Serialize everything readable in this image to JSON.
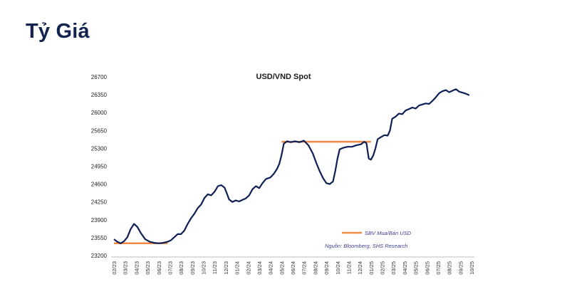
{
  "page": {
    "title": "Tỷ Giá"
  },
  "colors": {
    "title": "#12234f",
    "spot_line": "#0d1f56",
    "sbv_line": "#ef8a45",
    "legend_text": "#3d3f8f"
  },
  "chart_data": {
    "type": "line",
    "title": "USD/VND Spot",
    "xlabel": "",
    "ylabel": "",
    "ylim": [
      23200,
      26700
    ],
    "yticks": [
      26700,
      26350,
      26000,
      25650,
      25300,
      24950,
      24600,
      24250,
      23900,
      23550,
      23200
    ],
    "x_tick_labels": [
      "02/23",
      "03/23",
      "04/23",
      "05/23",
      "06/23",
      "07/23",
      "08/23",
      "09/23",
      "10/23",
      "11/23",
      "12/23",
      "01/24",
      "02/24",
      "03/24",
      "04/24",
      "05/24",
      "06/24",
      "07/24",
      "08/24",
      "09/24",
      "10/24",
      "11/24",
      "12/24",
      "01/25",
      "02/25",
      "03/25",
      "04/25",
      "05/25",
      "06/25",
      "07/25",
      "08/25",
      "09/25",
      "10/25"
    ],
    "grid": false,
    "legend": {
      "placement": "bottom-right",
      "source": "Nguồn: Bloomberg, SHS Research"
    },
    "series": [
      {
        "name": "",
        "style": "line",
        "points": [
          [
            0.0,
            23520
          ],
          [
            0.3,
            23470
          ],
          [
            0.6,
            23440
          ],
          [
            0.9,
            23480
          ],
          [
            1.2,
            23560
          ],
          [
            1.5,
            23720
          ],
          [
            1.8,
            23820
          ],
          [
            2.1,
            23760
          ],
          [
            2.4,
            23640
          ],
          [
            2.8,
            23520
          ],
          [
            3.2,
            23470
          ],
          [
            3.6,
            23450
          ],
          [
            4.0,
            23440
          ],
          [
            4.4,
            23450
          ],
          [
            4.8,
            23470
          ],
          [
            5.1,
            23500
          ],
          [
            5.4,
            23560
          ],
          [
            5.7,
            23620
          ],
          [
            6.0,
            23620
          ],
          [
            6.3,
            23690
          ],
          [
            6.6,
            23820
          ],
          [
            6.9,
            23930
          ],
          [
            7.2,
            24020
          ],
          [
            7.5,
            24130
          ],
          [
            7.8,
            24200
          ],
          [
            8.1,
            24330
          ],
          [
            8.4,
            24400
          ],
          [
            8.7,
            24380
          ],
          [
            9.0,
            24450
          ],
          [
            9.3,
            24560
          ],
          [
            9.6,
            24580
          ],
          [
            9.9,
            24530
          ],
          [
            10.1,
            24420
          ],
          [
            10.3,
            24300
          ],
          [
            10.6,
            24250
          ],
          [
            10.9,
            24280
          ],
          [
            11.2,
            24260
          ],
          [
            11.5,
            24290
          ],
          [
            11.8,
            24320
          ],
          [
            12.1,
            24380
          ],
          [
            12.4,
            24500
          ],
          [
            12.7,
            24560
          ],
          [
            13.0,
            24520
          ],
          [
            13.3,
            24620
          ],
          [
            13.6,
            24700
          ],
          [
            14.0,
            24730
          ],
          [
            14.3,
            24800
          ],
          [
            14.6,
            24900
          ],
          [
            14.8,
            25000
          ],
          [
            15.0,
            25170
          ],
          [
            15.2,
            25390
          ],
          [
            15.5,
            25440
          ],
          [
            15.8,
            25420
          ],
          [
            16.2,
            25440
          ],
          [
            16.6,
            25420
          ],
          [
            17.0,
            25450
          ],
          [
            17.4,
            25360
          ],
          [
            17.8,
            25200
          ],
          [
            18.1,
            25020
          ],
          [
            18.4,
            24860
          ],
          [
            18.7,
            24720
          ],
          [
            19.0,
            24620
          ],
          [
            19.3,
            24600
          ],
          [
            19.6,
            24650
          ],
          [
            19.8,
            24850
          ],
          [
            20.0,
            25100
          ],
          [
            20.2,
            25280
          ],
          [
            20.5,
            25310
          ],
          [
            20.9,
            25330
          ],
          [
            21.3,
            25330
          ],
          [
            21.7,
            25360
          ],
          [
            22.1,
            25380
          ],
          [
            22.4,
            25430
          ],
          [
            22.6,
            25400
          ],
          [
            22.8,
            25100
          ],
          [
            23.0,
            25080
          ],
          [
            23.2,
            25160
          ],
          [
            23.4,
            25300
          ],
          [
            23.6,
            25480
          ],
          [
            23.9,
            25520
          ],
          [
            24.2,
            25560
          ],
          [
            24.5,
            25550
          ],
          [
            24.7,
            25650
          ],
          [
            24.9,
            25880
          ],
          [
            25.2,
            25920
          ],
          [
            25.5,
            25980
          ],
          [
            25.8,
            25970
          ],
          [
            26.1,
            26040
          ],
          [
            26.4,
            26070
          ],
          [
            26.7,
            26100
          ],
          [
            27.0,
            26080
          ],
          [
            27.3,
            26140
          ],
          [
            27.6,
            26160
          ],
          [
            27.9,
            26180
          ],
          [
            28.2,
            26170
          ],
          [
            28.5,
            26230
          ],
          [
            28.8,
            26300
          ],
          [
            29.1,
            26380
          ],
          [
            29.4,
            26420
          ],
          [
            29.7,
            26440
          ],
          [
            30.0,
            26400
          ],
          [
            30.3,
            26430
          ],
          [
            30.6,
            26460
          ],
          [
            30.9,
            26410
          ],
          [
            31.2,
            26390
          ],
          [
            31.5,
            26370
          ],
          [
            31.8,
            26340
          ]
        ]
      },
      {
        "name": "SBV Mua/Bán USD",
        "style": "step",
        "segments": [
          {
            "x": [
              0.0,
              4.8
            ],
            "y": 23440
          },
          {
            "x": [
              15.0,
              23.0
            ],
            "y": 25430
          }
        ]
      }
    ]
  }
}
